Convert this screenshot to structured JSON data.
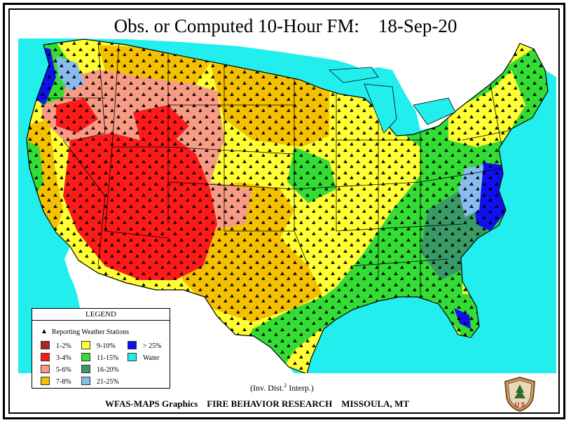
{
  "title": {
    "label": "Obs. or Computed 10-Hour FM:",
    "date": "18-Sep-20"
  },
  "legend": {
    "heading": "LEGEND",
    "stations_label": "Reporting Weather Stations",
    "items": [
      {
        "label": "1-2%",
        "color": "#b22222"
      },
      {
        "label": "3-4%",
        "color": "#ff1a1a"
      },
      {
        "label": "5-6%",
        "color": "#f79b84"
      },
      {
        "label": "7-8%",
        "color": "#f5c000"
      },
      {
        "label": "9-10%",
        "color": "#ffff33"
      },
      {
        "label": "11-15%",
        "color": "#33dd33"
      },
      {
        "label": "16-20%",
        "color": "#3a9a66"
      },
      {
        "label": "21-25%",
        "color": "#88bbee"
      },
      {
        "label": "> 25%",
        "color": "#1010ee"
      },
      {
        "label": "Water",
        "color": "#22eeee"
      }
    ]
  },
  "interp_note": {
    "text_before": "(Inv. Dist.",
    "superscript": "2",
    "text_after": " Interp.)"
  },
  "footer": {
    "left": "WFAS-MAPS Graphics",
    "middle": "FIRE BEHAVIOR RESEARCH",
    "right": "MISSOULA, MT"
  },
  "logo": {
    "name": "forest-service-shield",
    "text": "U S"
  },
  "colors": {
    "water": "#22eeee",
    "land_outside": "#ffffff",
    "border": "#000000"
  }
}
